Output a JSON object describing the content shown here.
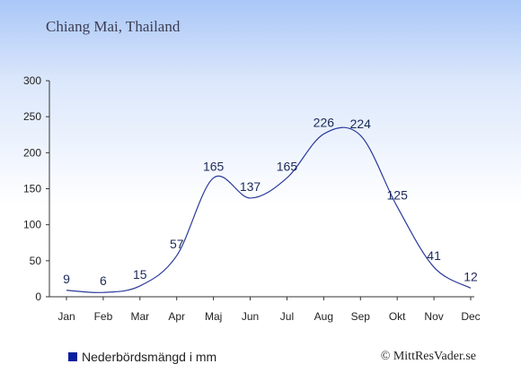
{
  "header": {
    "title": "Chiang Mai, Thailand"
  },
  "legend": {
    "label": "Nederbördsmängd i mm",
    "color": "#0b1f9e"
  },
  "footer": {
    "credit": "© MittResVader.se"
  },
  "chart_data": {
    "type": "line",
    "categories": [
      "Jan",
      "Feb",
      "Mar",
      "Apr",
      "Maj",
      "Jun",
      "Jul",
      "Aug",
      "Sep",
      "Okt",
      "Nov",
      "Dec"
    ],
    "series": [
      {
        "name": "Nederbördsmängd i mm",
        "values": [
          9,
          6,
          15,
          57,
          165,
          137,
          165,
          226,
          224,
          125,
          41,
          12
        ],
        "color": "#2a3a9a"
      }
    ],
    "yticks": [
      0,
      50,
      100,
      150,
      200,
      250,
      300
    ],
    "ylim": [
      0,
      300
    ],
    "grid": false,
    "legend_position": "bottom-left"
  }
}
